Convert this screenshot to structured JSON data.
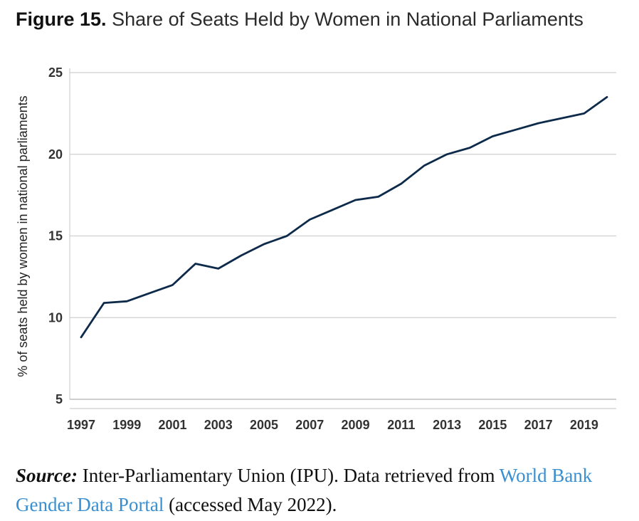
{
  "title": {
    "figure_label": "Figure 15.",
    "text": "Share of Seats Held by Women in National Parliaments"
  },
  "chart_data": {
    "type": "line",
    "title": "Share of Seats Held by Women in National Parliaments",
    "xlabel": "",
    "ylabel": "% of seats held by women in national parliaments",
    "ylim": [
      5,
      25
    ],
    "yticks": [
      5,
      10,
      15,
      20,
      25
    ],
    "xlim": [
      1997,
      2020
    ],
    "xticks": [
      1997,
      1999,
      2001,
      2003,
      2005,
      2007,
      2009,
      2011,
      2013,
      2015,
      2017,
      2019
    ],
    "grid": "horizontal",
    "line_color": "#0d2a4a",
    "series": [
      {
        "x": [
          1997,
          1998,
          1999,
          2000,
          2001,
          2002,
          2003,
          2004,
          2005,
          2006,
          2007,
          2008,
          2009,
          2010,
          2011,
          2012,
          2013,
          2014,
          2015,
          2016,
          2017,
          2018,
          2019,
          2020
        ],
        "values": [
          8.8,
          10.9,
          11.0,
          11.5,
          12.0,
          13.3,
          13.0,
          13.8,
          14.5,
          15.0,
          16.0,
          16.6,
          17.2,
          17.4,
          18.2,
          19.3,
          20.0,
          20.4,
          21.1,
          21.5,
          21.9,
          22.2,
          22.5,
          23.5
        ]
      }
    ]
  },
  "source": {
    "label": "Source:",
    "text_before_link": " Inter-Parliamentary Union (IPU). Data retrieved from ",
    "link_text": "World Bank Gender Data Portal",
    "text_after_link": " (accessed May 2022)."
  }
}
